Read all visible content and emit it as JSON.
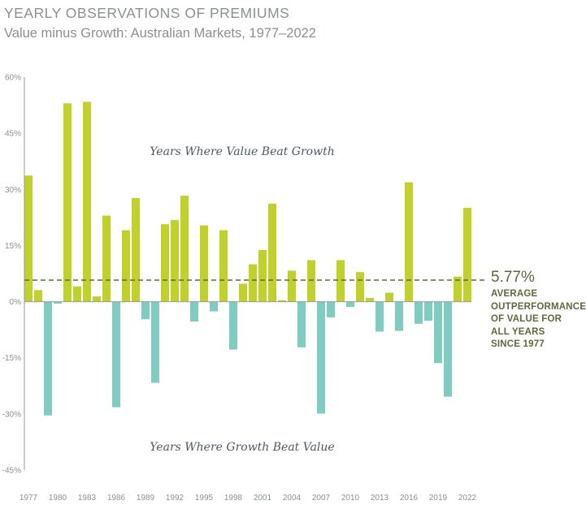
{
  "title": "YEARLY OBSERVATIONS OF PREMIUMS",
  "subtitle": "Value minus Growth: Australian Markets, 1977–2022",
  "chart_data": {
    "type": "bar",
    "title": "YEARLY OBSERVATIONS OF PREMIUMS",
    "subtitle": "Value minus Growth: Australian Markets, 1977–2022",
    "xlabel": "",
    "ylabel": "",
    "ylim": [
      -45,
      60
    ],
    "yticks": [
      "60%",
      "45%",
      "30%",
      "15%",
      "0%",
      "-15%",
      "-30%",
      "-45%"
    ],
    "ytick_values": [
      60,
      45,
      30,
      15,
      0,
      -15,
      -30,
      -45
    ],
    "xtick_labels": [
      "1977",
      "1980",
      "1983",
      "1986",
      "1989",
      "1992",
      "1995",
      "1998",
      "2001",
      "2004",
      "2007",
      "2010",
      "2013",
      "2016",
      "2019",
      "2022"
    ],
    "categories": [
      1977,
      1978,
      1979,
      1980,
      1981,
      1982,
      1983,
      1984,
      1985,
      1986,
      1987,
      1988,
      1989,
      1990,
      1991,
      1992,
      1993,
      1994,
      1995,
      1996,
      1997,
      1998,
      1999,
      2000,
      2001,
      2002,
      2003,
      2004,
      2005,
      2006,
      2007,
      2008,
      2009,
      2010,
      2011,
      2012,
      2013,
      2014,
      2015,
      2016,
      2017,
      2018,
      2019,
      2020,
      2021,
      2022
    ],
    "values": [
      33.7,
      3.1,
      -30.4,
      -0.5,
      53.0,
      4.1,
      53.4,
      1.4,
      23.0,
      -28.2,
      19.1,
      27.7,
      -4.7,
      -21.7,
      20.7,
      21.8,
      28.3,
      -5.3,
      20.4,
      -2.6,
      19.1,
      -12.8,
      4.8,
      10.0,
      13.8,
      26.2,
      0.4,
      8.3,
      -12.2,
      11.1,
      -29.9,
      -4.2,
      11.1,
      -1.4,
      7.9,
      1.0,
      -8.0,
      2.4,
      -7.8,
      31.9,
      -5.9,
      -5.1,
      -16.4,
      -25.4,
      6.7,
      25.1
    ],
    "average": 5.77,
    "grid": false,
    "colors": {
      "positive": "#c0d22a",
      "negative": "#7ecdc0",
      "average_line": "#5a6a3a"
    },
    "annotations": {
      "positive_region": "Years Where Value Beat Growth",
      "negative_region": "Years Where Growth Beat Value",
      "average_value": "5.77%",
      "average_label": "AVERAGE OUTPERFORMANCE OF VALUE FOR ALL YEARS SINCE 1977"
    }
  }
}
